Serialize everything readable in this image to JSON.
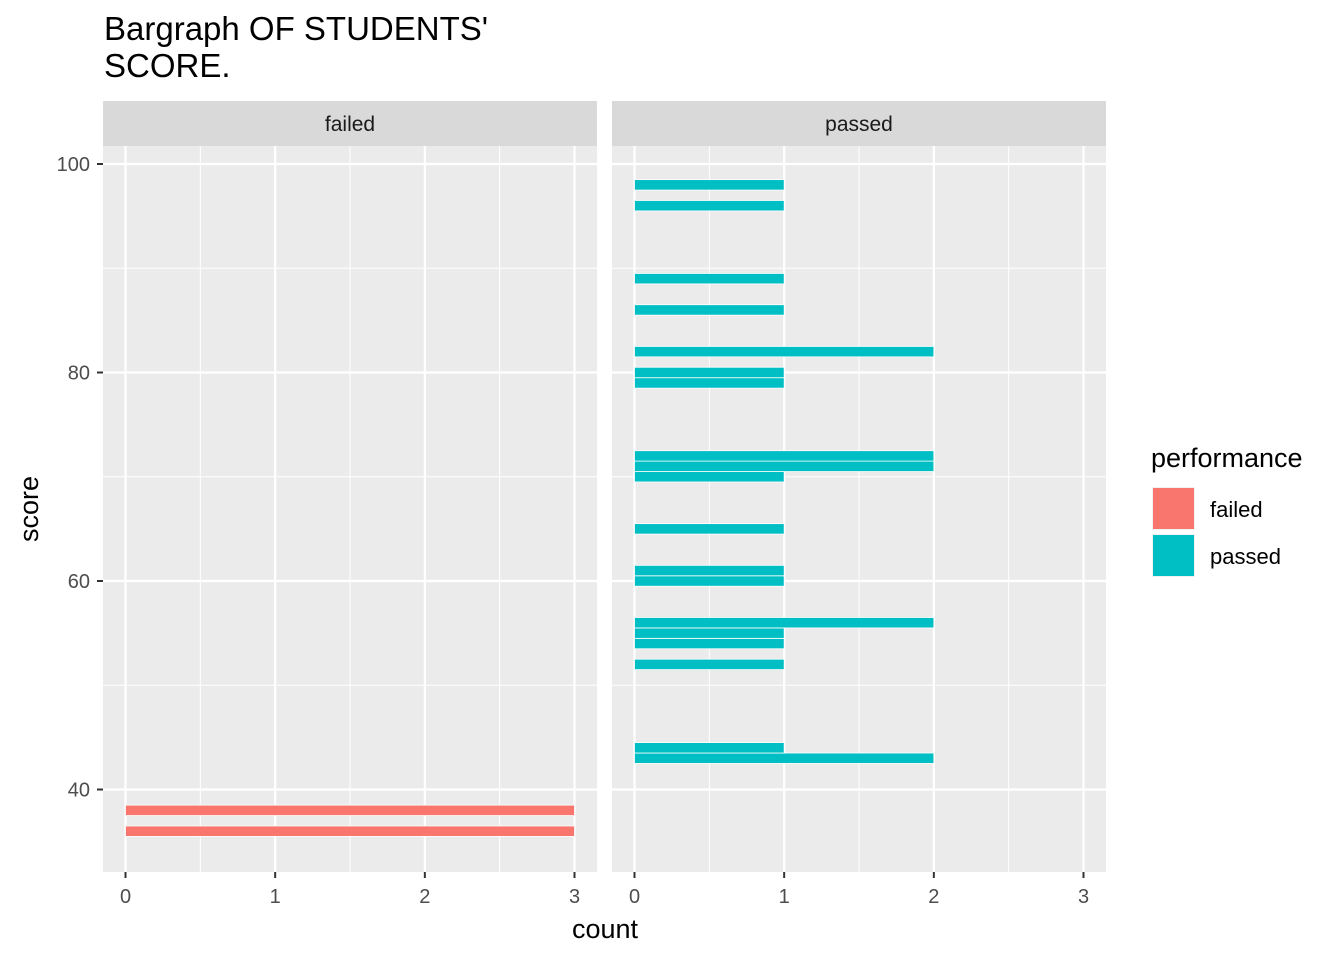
{
  "chart_data": {
    "type": "bar",
    "orientation": "horizontal",
    "title": "Bargraph OF STUDENTS'\nSCORE.",
    "xlabel": "count",
    "ylabel": "score",
    "xlim": [
      0,
      3
    ],
    "ylim": [
      33,
      102
    ],
    "x_ticks": [
      0,
      1,
      2,
      3
    ],
    "y_ticks": [
      40,
      60,
      80,
      100
    ],
    "grid": true,
    "legend": {
      "title": "performance",
      "placement": "right",
      "entries": [
        {
          "label": "failed",
          "color": "#F8766D"
        },
        {
          "label": "passed",
          "color": "#00BFC4"
        }
      ]
    },
    "facets": [
      {
        "label": "failed",
        "color": "#F8766D",
        "bars": [
          {
            "score": 36,
            "count": 3
          },
          {
            "score": 38,
            "count": 3
          }
        ]
      },
      {
        "label": "passed",
        "color": "#00BFC4",
        "bars": [
          {
            "score": 43,
            "count": 2
          },
          {
            "score": 44,
            "count": 1
          },
          {
            "score": 52,
            "count": 1
          },
          {
            "score": 54,
            "count": 1
          },
          {
            "score": 55,
            "count": 1
          },
          {
            "score": 56,
            "count": 2
          },
          {
            "score": 60,
            "count": 1
          },
          {
            "score": 61,
            "count": 1
          },
          {
            "score": 65,
            "count": 1
          },
          {
            "score": 70,
            "count": 1
          },
          {
            "score": 71,
            "count": 2
          },
          {
            "score": 72,
            "count": 2
          },
          {
            "score": 79,
            "count": 1
          },
          {
            "score": 80,
            "count": 1
          },
          {
            "score": 82,
            "count": 2
          },
          {
            "score": 86,
            "count": 1
          },
          {
            "score": 89,
            "count": 1
          },
          {
            "score": 96,
            "count": 1
          },
          {
            "score": 98,
            "count": 1
          }
        ]
      }
    ]
  }
}
